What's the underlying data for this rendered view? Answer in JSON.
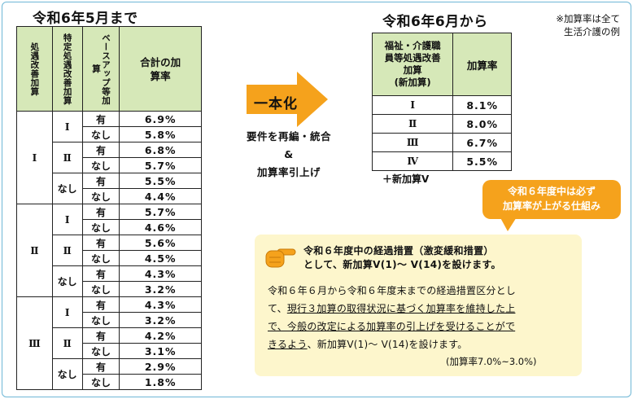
{
  "left_title": "令和6年5月まで",
  "left_table": {
    "headers": [
      "処遇改善加算",
      "特定処遇改善加算",
      "ベースアップ等加算",
      "合計の加算率"
    ],
    "groups": [
      {
        "level": "Ⅰ",
        "sub": [
          {
            "tokutei": "Ⅰ",
            "rows": [
              {
                "base": "有",
                "rate": "6.9%"
              },
              {
                "base": "なし",
                "rate": "5.8%"
              }
            ]
          },
          {
            "tokutei": "Ⅱ",
            "rows": [
              {
                "base": "有",
                "rate": "6.8%"
              },
              {
                "base": "なし",
                "rate": "5.7%"
              }
            ]
          },
          {
            "tokutei": "なし",
            "rows": [
              {
                "base": "有",
                "rate": "5.5%"
              },
              {
                "base": "なし",
                "rate": "4.4%"
              }
            ]
          }
        ]
      },
      {
        "level": "Ⅱ",
        "sub": [
          {
            "tokutei": "Ⅰ",
            "rows": [
              {
                "base": "有",
                "rate": "5.7%"
              },
              {
                "base": "なし",
                "rate": "4.6%"
              }
            ]
          },
          {
            "tokutei": "Ⅱ",
            "rows": [
              {
                "base": "有",
                "rate": "5.6%"
              },
              {
                "base": "なし",
                "rate": "4.5%"
              }
            ]
          },
          {
            "tokutei": "なし",
            "rows": [
              {
                "base": "有",
                "rate": "4.3%"
              },
              {
                "base": "なし",
                "rate": "3.2%"
              }
            ]
          }
        ]
      },
      {
        "level": "Ⅲ",
        "sub": [
          {
            "tokutei": "Ⅰ",
            "rows": [
              {
                "base": "有",
                "rate": "4.3%"
              },
              {
                "base": "なし",
                "rate": "3.2%"
              }
            ]
          },
          {
            "tokutei": "Ⅱ",
            "rows": [
              {
                "base": "有",
                "rate": "4.2%"
              },
              {
                "base": "なし",
                "rate": "3.1%"
              }
            ]
          },
          {
            "tokutei": "なし",
            "rows": [
              {
                "base": "有",
                "rate": "2.9%"
              },
              {
                "base": "なし",
                "rate": "1.8%"
              }
            ]
          }
        ]
      }
    ]
  },
  "arrow_label": "一本化",
  "requirement_text": [
    "要件を再編・統合",
    "&",
    "加算率引上げ"
  ],
  "right_title": "令和6年6月から",
  "note": [
    "※加算率は全て",
    "生活介護の例"
  ],
  "right_table": {
    "header_left": [
      "福祉・介護職",
      "員等処遇改善",
      "加算",
      "(新加算)"
    ],
    "header_right": "加算率",
    "rows": [
      {
        "level": "Ⅰ",
        "rate": "8.1%"
      },
      {
        "level": "Ⅱ",
        "rate": "8.0%"
      },
      {
        "level": "Ⅲ",
        "rate": "6.7%"
      },
      {
        "level": "Ⅳ",
        "rate": "5.5%"
      }
    ]
  },
  "new_v_label": "＋新加算Ⅴ",
  "bubble": [
    "令和６年度中は必ず",
    "加算率が上がる仕組み"
  ],
  "info": {
    "headline": [
      "令和６年度中の経過措置（激変緩和措置）",
      "として、新加算Ⅴ(1)～ Ⅴ(14)を設けます。"
    ],
    "body_plain1": "令和６年６月から令和６年度末までの経過措置区分とし",
    "body_plain2": "て、",
    "body_ul1": "現行３加算の取得状況に基づく加算率を維持した上",
    "body_ul2": "で、今般の改定による加算率の引上げを受けることがで",
    "body_ul3": "きるよう",
    "body_plain3": "、新加算Ⅴ(1)～ Ⅴ(14)を設けます。",
    "footnote": "(加算率7.0%~3.0%)"
  },
  "colors": {
    "header_green": "#d6e8b8",
    "arrow": "#f5a21c",
    "bubble": "#f5a21c",
    "info_bg": "#fdf6cc",
    "frame": "#6fb7d6"
  }
}
